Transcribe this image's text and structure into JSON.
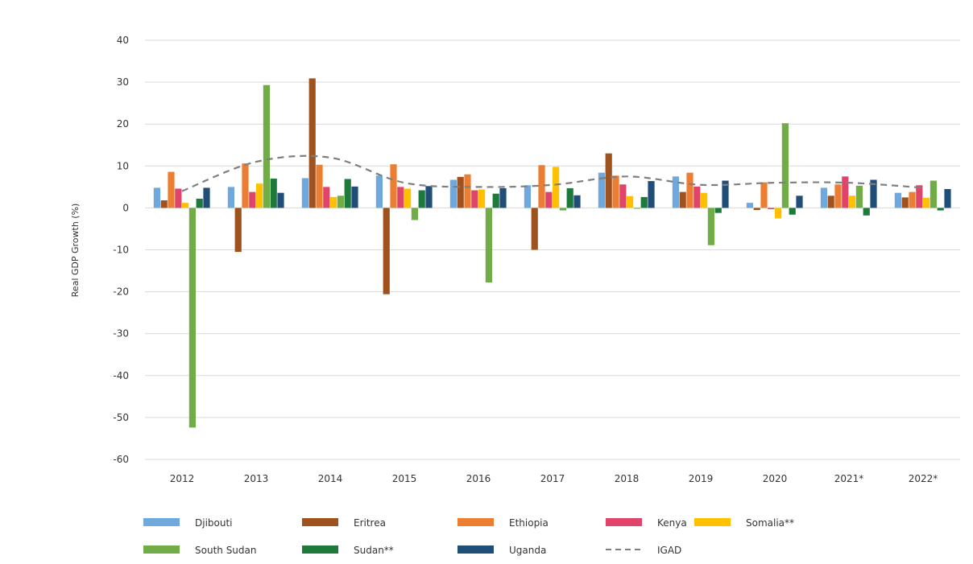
{
  "chart_data": {
    "type": "bar",
    "ylabel": "Real GDP Growth  (%)",
    "ylim": [
      -60,
      40
    ],
    "yticks": [
      40,
      30,
      20,
      10,
      0,
      -10,
      -20,
      -30,
      -40,
      -50,
      -60
    ],
    "grid": true,
    "legend_position": "bottom",
    "categories": [
      "2012",
      "2013",
      "2014",
      "2015",
      "2016",
      "2017",
      "2018",
      "2019",
      "2020",
      "2021*",
      "2022*"
    ],
    "series": [
      {
        "name": "Djibouti",
        "color": "#6fa8dc",
        "values": [
          4.8,
          5.0,
          7.1,
          7.7,
          6.7,
          5.4,
          8.4,
          7.5,
          1.2,
          4.8,
          3.6
        ]
      },
      {
        "name": "Eritrea",
        "color": "#a0521e",
        "values": [
          1.8,
          -10.5,
          30.9,
          -20.6,
          7.4,
          -10.0,
          13.0,
          3.8,
          -0.5,
          2.9,
          2.5
        ]
      },
      {
        "name": "Ethiopia",
        "color": "#ed7d31",
        "values": [
          8.6,
          10.6,
          10.3,
          10.4,
          8.0,
          10.2,
          7.7,
          8.4,
          6.1,
          5.6,
          3.8
        ]
      },
      {
        "name": "Kenya",
        "color": "#e0446b",
        "values": [
          4.6,
          3.8,
          5.0,
          5.0,
          4.2,
          3.8,
          5.6,
          5.1,
          -0.3,
          7.5,
          5.4
        ]
      },
      {
        "name": "Somalia**",
        "color": "#ffc000",
        "values": [
          1.2,
          5.8,
          2.6,
          4.6,
          4.4,
          9.8,
          2.8,
          3.6,
          -2.5,
          2.9,
          2.4
        ]
      },
      {
        "name": "South Sudan",
        "color": "#70ad47",
        "values": [
          -52.4,
          29.3,
          2.9,
          -2.9,
          -17.8,
          -0.6,
          -0.2,
          -8.9,
          20.2,
          5.3,
          6.5
        ]
      },
      {
        "name": "Sudan**",
        "color": "#1e7a3a",
        "values": [
          2.2,
          7.0,
          6.9,
          4.2,
          3.4,
          4.7,
          2.6,
          -1.2,
          -1.6,
          -1.8,
          -0.6
        ]
      },
      {
        "name": "Uganda",
        "color": "#1f4e79",
        "values": [
          4.8,
          3.6,
          5.1,
          5.2,
          4.7,
          3.0,
          6.4,
          6.5,
          2.9,
          6.7,
          4.5
        ]
      }
    ],
    "line_series": {
      "name": "IGAD",
      "color": "#7f7f7f",
      "style": "dashed",
      "values": [
        4.0,
        11.0,
        12.0,
        6.0,
        5.0,
        5.5,
        7.5,
        5.5,
        6.0,
        6.0,
        4.8
      ]
    }
  }
}
